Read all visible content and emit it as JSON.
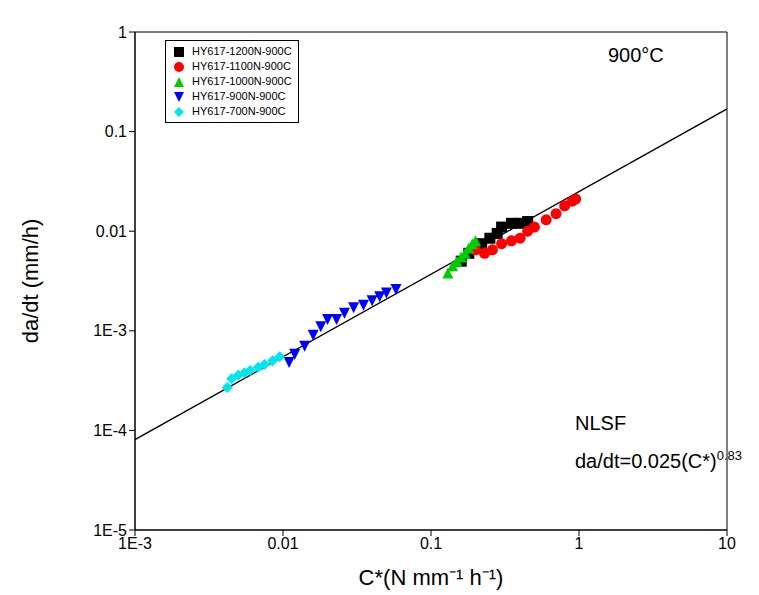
{
  "chart_data": {
    "type": "scatter",
    "log": true,
    "legend": "upper left",
    "grid": false,
    "x_label": "C*(N mm⁻¹ h⁻¹)",
    "y_label": "da/dt (mm/h)",
    "xlim": [
      0.001,
      10
    ],
    "ylim": [
      1e-05,
      1
    ],
    "xticks": [
      {
        "value": 0.001,
        "label": "1E-3"
      },
      0.01,
      0.1,
      1,
      10
    ],
    "yticks": [
      {
        "value": 1e-05,
        "label": "1E-5"
      },
      {
        "value": 0.0001,
        "label": "1E-4"
      },
      {
        "value": 0.001,
        "label": "1E-3"
      },
      0.01,
      0.1,
      1
    ],
    "annotations": [
      {
        "text": "900°C"
      },
      {
        "text": "NLSF"
      },
      {
        "text": "da/dt=0.025(C*)",
        "superscript": "0.83"
      }
    ],
    "fit_line": {
      "color": "#000000",
      "x": [
        0.001,
        10
      ],
      "values": [
        8.09e-05,
        0.169
      ]
    },
    "series": [
      {
        "name": "HY617-1200N-900C",
        "color": "#000000",
        "marker": "square",
        "x": [
          0.16,
          0.18,
          0.2,
          0.22,
          0.25,
          0.28,
          0.3,
          0.35,
          0.4,
          0.45
        ],
        "values": [
          0.005,
          0.006,
          0.0068,
          0.0075,
          0.0085,
          0.0095,
          0.011,
          0.012,
          0.012,
          0.0125
        ]
      },
      {
        "name": "HY617-1100N-900C",
        "color": "#ff0000",
        "marker": "circle",
        "x": [
          0.2,
          0.23,
          0.26,
          0.3,
          0.35,
          0.4,
          0.45,
          0.5,
          0.6,
          0.7,
          0.8,
          0.9,
          0.95
        ],
        "values": [
          0.0065,
          0.006,
          0.0065,
          0.0075,
          0.008,
          0.0085,
          0.01,
          0.011,
          0.013,
          0.015,
          0.018,
          0.02,
          0.021
        ]
      },
      {
        "name": "HY617-1000N-900C",
        "color": "#00cc00",
        "marker": "triangle",
        "x": [
          0.13,
          0.14,
          0.15,
          0.16,
          0.17,
          0.18,
          0.19,
          0.2
        ],
        "values": [
          0.0038,
          0.0045,
          0.005,
          0.0055,
          0.006,
          0.0068,
          0.0075,
          0.008
        ]
      },
      {
        "name": "HY617-900N-900C",
        "color": "#0000ff",
        "marker": "triangle_down",
        "x": [
          0.011,
          0.012,
          0.014,
          0.016,
          0.018,
          0.02,
          0.023,
          0.026,
          0.03,
          0.035,
          0.04,
          0.045,
          0.05,
          0.058
        ],
        "values": [
          0.00048,
          0.00058,
          0.0007,
          0.0009,
          0.0011,
          0.0013,
          0.0013,
          0.0015,
          0.0017,
          0.0018,
          0.002,
          0.0022,
          0.0024,
          0.0026
        ]
      },
      {
        "name": "HY617-700N-900C",
        "color": "#00e5ee",
        "marker": "diamond",
        "x": [
          0.0042,
          0.0045,
          0.005,
          0.0055,
          0.006,
          0.0068,
          0.0075,
          0.0085,
          0.0095
        ],
        "values": [
          0.00027,
          0.00033,
          0.00036,
          0.00038,
          0.0004,
          0.00043,
          0.00046,
          0.0005,
          0.00055
        ]
      }
    ]
  }
}
